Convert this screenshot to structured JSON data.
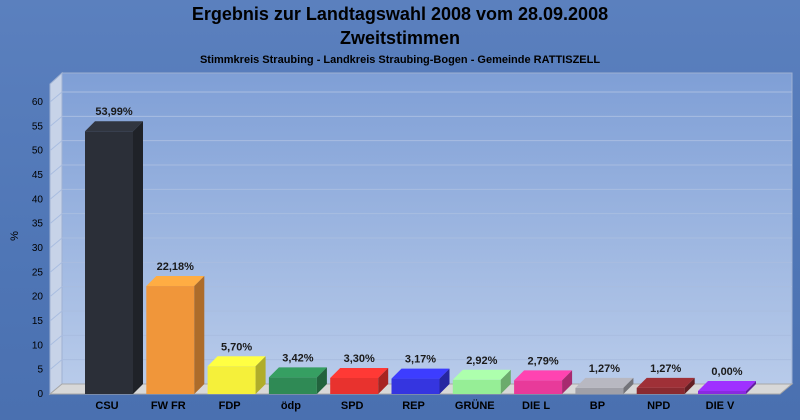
{
  "header": {
    "title": "Ergebnis zur Landtagswahl 2008 vom 28.09.2008",
    "subtitle": "Zweitstimmen",
    "region": "Stimmkreis Straubing - Landkreis Straubing-Bogen - Gemeinde RATTISZELL"
  },
  "chart_data": {
    "type": "bar",
    "title": "Ergebnis zur Landtagswahl 2008 vom 28.09.2008",
    "subtitle": "Zweitstimmen",
    "xlabel": "",
    "ylabel": "%",
    "ylim": [
      0,
      60
    ],
    "yticks": [
      0,
      5,
      10,
      15,
      20,
      25,
      30,
      35,
      40,
      45,
      50,
      55,
      60
    ],
    "grid": true,
    "categories": [
      "CSU",
      "FW FR",
      "FDP",
      "ödp",
      "SPD",
      "REP",
      "GRÜNE",
      "DIE L",
      "BP",
      "NPD",
      "DIE V"
    ],
    "values": [
      53.99,
      22.18,
      5.7,
      3.42,
      3.3,
      3.17,
      2.92,
      2.79,
      1.27,
      1.27,
      0.0
    ],
    "value_labels": [
      "53,99%",
      "22,18%",
      "5,70%",
      "3,42%",
      "3,30%",
      "3,17%",
      "2,92%",
      "2,79%",
      "1,27%",
      "1,27%",
      "0,00%"
    ],
    "colors": [
      "#2b2f38",
      "#f0963a",
      "#f5f03a",
      "#2f8a55",
      "#e8322e",
      "#3535e0",
      "#96ee96",
      "#e83a9a",
      "#a0a0a8",
      "#8a2a30",
      "#8a2ae0"
    ]
  }
}
